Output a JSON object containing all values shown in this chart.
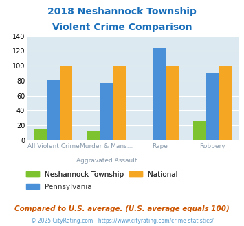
{
  "title_line1": "2018 Neshannock Township",
  "title_line2": "Violent Crime Comparison",
  "title_color": "#1a6fbb",
  "cat_labels_top": [
    "",
    "Aggravated Assault",
    "",
    ""
  ],
  "cat_labels_bottom": [
    "All Violent Crime",
    "Murder & Mans...",
    "Rape",
    "Robbery"
  ],
  "neshannock": [
    15,
    13,
    0,
    26
  ],
  "national": [
    100,
    100,
    100,
    100
  ],
  "pennsylvania": [
    81,
    77,
    124,
    90
  ],
  "colors": {
    "neshannock": "#7dc330",
    "national": "#f5a623",
    "pennsylvania": "#4a90d9"
  },
  "ylim": [
    0,
    140
  ],
  "yticks": [
    0,
    20,
    40,
    60,
    80,
    100,
    120,
    140
  ],
  "bg_color": "#dce9f0",
  "footer_note": "Compared to U.S. average. (U.S. average equals 100)",
  "footer_copy": "© 2025 CityRating.com - https://www.cityrating.com/crime-statistics/",
  "legend": [
    "Neshannock Township",
    "National",
    "Pennsylvania"
  ]
}
